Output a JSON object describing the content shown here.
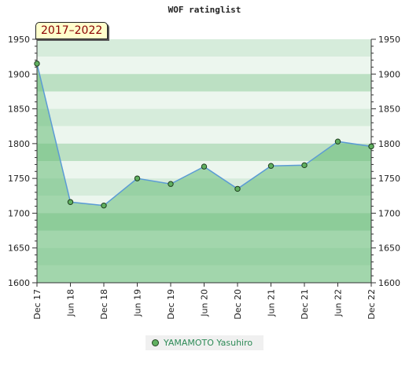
{
  "chart_data": {
    "type": "area",
    "title": "WOF ratinglist",
    "period_label": "2017–2022",
    "categories": [
      "Dec 17",
      "Jun 18",
      "Dec 18",
      "Jun 19",
      "Dec 19",
      "Jun 20",
      "Dec 20",
      "Jun 21",
      "Dec 21",
      "Jun 22",
      "Dec 22"
    ],
    "series": [
      {
        "name": "YAMAMOTO Yasuhiro",
        "values": [
          1915,
          1716,
          1711,
          1750,
          1742,
          1767,
          1735,
          1768,
          1769,
          1803,
          1796
        ]
      }
    ],
    "ylim": [
      1600,
      1950
    ],
    "yticks": [
      1600,
      1650,
      1700,
      1750,
      1800,
      1850,
      1900,
      1950
    ],
    "colors": {
      "line": "#5b9bd5",
      "fill": "#66bb77",
      "marker": "#60b060"
    }
  }
}
